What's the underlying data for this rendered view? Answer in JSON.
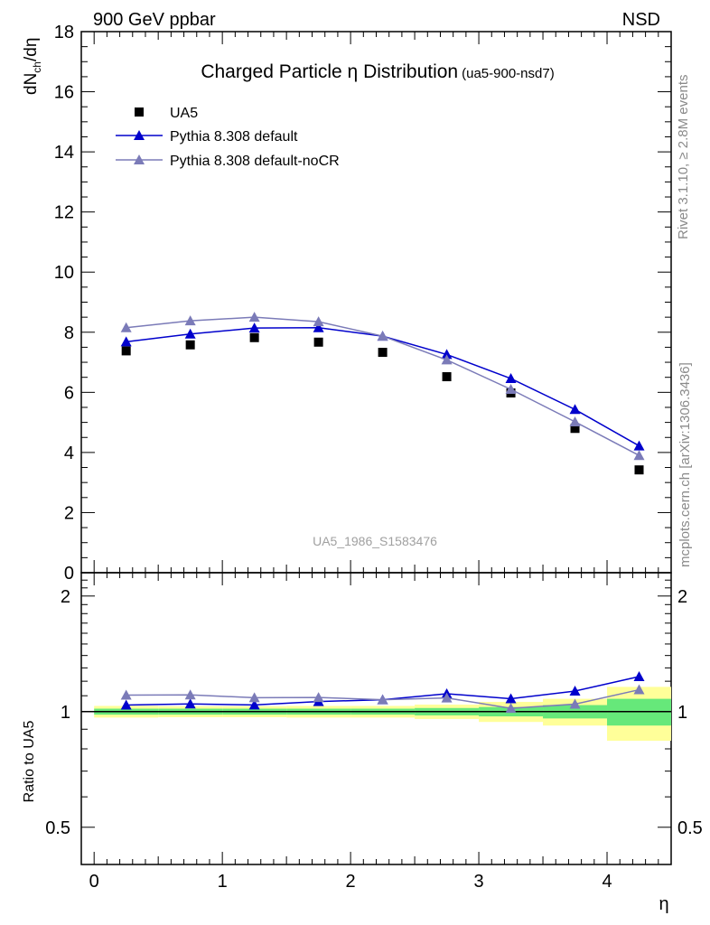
{
  "header": {
    "left": "900 GeV ppbar",
    "right": "NSD"
  },
  "side_text": {
    "rivet": "Rivet 3.1.10, ≥ 2.8M events",
    "mcplots": "mcplots.cern.ch [arXiv:1306.3436]"
  },
  "chart_data": {
    "type": "scatter",
    "title_main": "Charged Particle η Distribution",
    "title_sub": "(ua5-900-nsd7)",
    "ylabel_top": "dN",
    "ylabel_sub": "ch",
    "ylabel_tail": "/dη",
    "ylabel_ratio": "Ratio to UA5",
    "xlabel": "η",
    "watermark": "UA5_1986_S1583476",
    "xlim": [
      -0.1,
      4.5
    ],
    "ylim_main": [
      0,
      18
    ],
    "ylim_ratio": [
      0.4,
      2.3
    ],
    "ratio_scale": "log",
    "x_ticks": [
      "0",
      "1",
      "2",
      "3",
      "4"
    ],
    "y_ticks_main": [
      "0",
      "2",
      "4",
      "6",
      "8",
      "10",
      "12",
      "14",
      "16",
      "18"
    ],
    "y_ticks_ratio": [
      "0.5",
      "1",
      "2"
    ],
    "legend_position": "top-left",
    "x": [
      0.25,
      0.75,
      1.25,
      1.75,
      2.25,
      2.75,
      3.25,
      3.75,
      4.25
    ],
    "series": [
      {
        "name": "UA5",
        "marker": "square",
        "color": "#000000",
        "values": [
          7.38,
          7.58,
          7.82,
          7.67,
          7.33,
          6.52,
          5.98,
          4.8,
          3.42
        ]
      },
      {
        "name": "Pythia 8.308 default",
        "marker": "triangle",
        "color": "#0000cc",
        "values": [
          7.68,
          7.94,
          8.14,
          8.15,
          7.87,
          7.26,
          6.46,
          5.43,
          4.22
        ]
      },
      {
        "name": "Pythia 8.308 default-noCR",
        "marker": "triangle",
        "color": "#7b7bb8",
        "values": [
          8.15,
          8.38,
          8.5,
          8.35,
          7.87,
          7.08,
          6.1,
          5.02,
          3.9
        ]
      }
    ],
    "ratio_band": {
      "x_edges": [
        0,
        0.5,
        1,
        1.5,
        2,
        2.5,
        3,
        3.5,
        4,
        4.5
      ],
      "green_halfwidth": [
        0.018,
        0.018,
        0.018,
        0.018,
        0.018,
        0.022,
        0.028,
        0.04,
        0.08
      ],
      "yellow_halfwidth": [
        0.035,
        0.033,
        0.033,
        0.035,
        0.035,
        0.043,
        0.06,
        0.08,
        0.16
      ]
    }
  }
}
